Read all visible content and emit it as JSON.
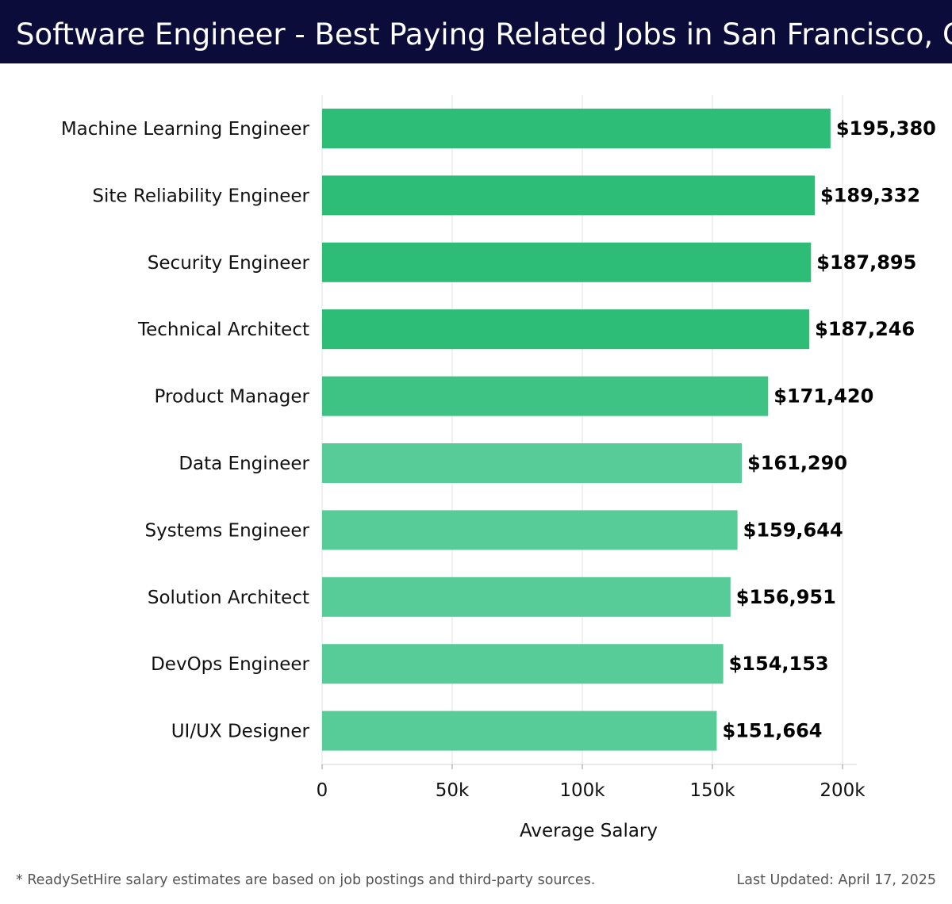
{
  "header": {
    "title": "Software Engineer - Best Paying Related Jobs in San Francisco, CA"
  },
  "footer": {
    "note": "* ReadySetHire salary estimates are based on job postings and third-party sources.",
    "updated": "Last Updated: April 17, 2025"
  },
  "colors": {
    "header_bg": "#0b0c3a",
    "bar_high": "#2ebd77",
    "bar_low": "#58cc98"
  },
  "chart_data": {
    "type": "bar",
    "orientation": "horizontal",
    "title": "Software Engineer - Best Paying Related Jobs in San Francisco, CA",
    "xlabel": "Average Salary",
    "ylabel": "",
    "xlim": [
      0,
      205000
    ],
    "xticks": [
      0,
      50000,
      100000,
      150000,
      200000
    ],
    "xtick_labels": [
      "0",
      "50k",
      "100k",
      "150k",
      "200k"
    ],
    "grid": "vertical",
    "legend": "none",
    "categories": [
      "Machine Learning Engineer",
      "Site Reliability Engineer",
      "Security Engineer",
      "Technical Architect",
      "Product Manager",
      "Data Engineer",
      "Systems Engineer",
      "Solution Architect",
      "DevOps Engineer",
      "UI/UX Designer"
    ],
    "values": [
      195380,
      189332,
      187895,
      187246,
      171420,
      161290,
      159644,
      156951,
      154153,
      151664
    ],
    "value_labels": [
      "$195,380",
      "$189,332",
      "$187,895",
      "$187,246",
      "$171,420",
      "$161,290",
      "$159,644",
      "$156,951",
      "$154,153",
      "$151,664"
    ]
  }
}
